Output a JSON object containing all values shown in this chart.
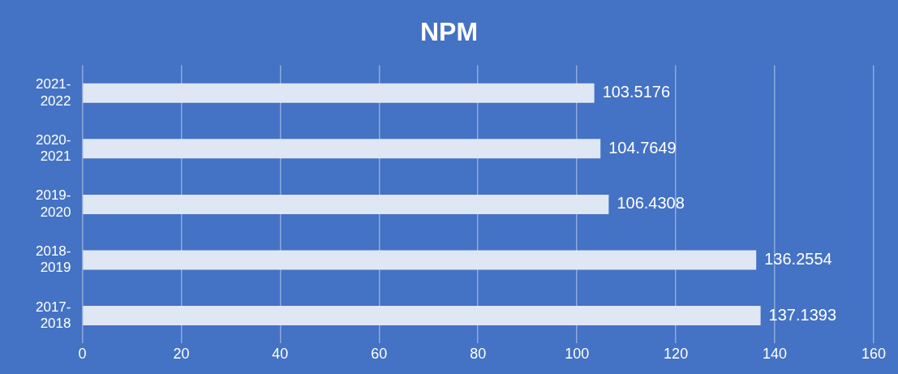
{
  "chart_data": {
    "type": "bar",
    "orientation": "horizontal",
    "title": "NPM",
    "categories": [
      "2021-2022",
      "2020-2021",
      "2019-2020",
      "2018-2019",
      "2017-2018"
    ],
    "values": [
      103.5176,
      104.7649,
      106.4308,
      136.2554,
      137.1393
    ],
    "color": "#dfe7f5",
    "xlim": [
      0,
      160
    ],
    "xticks": [
      0,
      20,
      40,
      60,
      80,
      100,
      120,
      140,
      160
    ],
    "grid": "x",
    "legend": false,
    "data_labels": true
  }
}
